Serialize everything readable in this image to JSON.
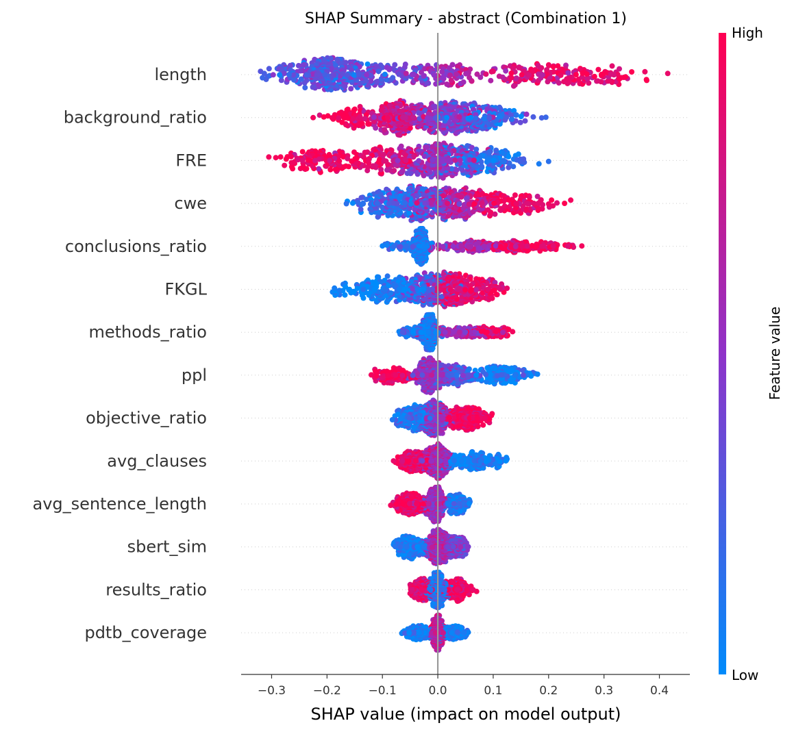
{
  "chart_data": {
    "type": "scatter",
    "subtype": "shap-beeswarm",
    "title": "SHAP Summary - abstract (Combination 1)",
    "xlabel": "SHAP value (impact on model output)",
    "xlim": [
      -0.355,
      0.455
    ],
    "xticks": [
      -0.3,
      -0.2,
      -0.1,
      0.0,
      0.1,
      0.2,
      0.3,
      0.4
    ],
    "xtick_labels": [
      "−0.3",
      "−0.2",
      "−0.1",
      "0.0",
      "0.1",
      "0.2",
      "0.3",
      "0.4"
    ],
    "zero_line": 0.0,
    "colorbar": {
      "label": "Feature value",
      "high_label": "High",
      "low_label": "Low",
      "low_color": "#008bfb",
      "mid_color": "#8f33c9",
      "high_color": "#ff0052"
    },
    "features": [
      {
        "name": "length",
        "min": -0.32,
        "max": 0.415,
        "clusters": [
          {
            "c": -0.2,
            "s": 0.05,
            "w": 0.45,
            "v": 0.3
          },
          {
            "c": -0.08,
            "s": 0.05,
            "w": 0.15,
            "v": 0.4
          },
          {
            "c": 0.02,
            "s": 0.03,
            "w": 0.1,
            "v": 0.6
          },
          {
            "c": 0.14,
            "s": 0.06,
            "w": 0.12,
            "v": 0.8
          },
          {
            "c": 0.26,
            "s": 0.05,
            "w": 0.18,
            "v": 0.9
          }
        ]
      },
      {
        "name": "background_ratio",
        "min": -0.225,
        "max": 0.195,
        "clusters": [
          {
            "c": -0.16,
            "s": 0.02,
            "w": 0.1,
            "v": 0.95
          },
          {
            "c": -0.07,
            "s": 0.03,
            "w": 0.3,
            "v": 0.8
          },
          {
            "c": 0.01,
            "s": 0.04,
            "w": 0.35,
            "v": 0.5
          },
          {
            "c": 0.08,
            "s": 0.04,
            "w": 0.25,
            "v": 0.2
          }
        ]
      },
      {
        "name": "FRE",
        "min": -0.305,
        "max": 0.2,
        "clusters": [
          {
            "c": -0.2,
            "s": 0.045,
            "w": 0.22,
            "v": 0.95
          },
          {
            "c": -0.08,
            "s": 0.03,
            "w": 0.2,
            "v": 0.8
          },
          {
            "c": 0.0,
            "s": 0.035,
            "w": 0.35,
            "v": 0.55
          },
          {
            "c": 0.08,
            "s": 0.04,
            "w": 0.23,
            "v": 0.15
          }
        ]
      },
      {
        "name": "cwe",
        "min": -0.165,
        "max": 0.24,
        "clusters": [
          {
            "c": -0.08,
            "s": 0.035,
            "w": 0.3,
            "v": 0.15
          },
          {
            "c": -0.02,
            "s": 0.03,
            "w": 0.25,
            "v": 0.4
          },
          {
            "c": 0.04,
            "s": 0.035,
            "w": 0.25,
            "v": 0.7
          },
          {
            "c": 0.13,
            "s": 0.04,
            "w": 0.2,
            "v": 0.95
          }
        ]
      },
      {
        "name": "conclusions_ratio",
        "min": -0.1,
        "max": 0.26,
        "clusters": [
          {
            "c": -0.03,
            "s": 0.006,
            "w": 0.5,
            "v": 0.05
          },
          {
            "c": -0.06,
            "s": 0.02,
            "w": 0.08,
            "v": 0.1
          },
          {
            "c": 0.06,
            "s": 0.04,
            "w": 0.22,
            "v": 0.6
          },
          {
            "c": 0.16,
            "s": 0.04,
            "w": 0.2,
            "v": 0.95
          }
        ]
      },
      {
        "name": "FKGL",
        "min": -0.19,
        "max": 0.125,
        "clusters": [
          {
            "c": -0.09,
            "s": 0.05,
            "w": 0.35,
            "v": 0.05
          },
          {
            "c": -0.02,
            "s": 0.02,
            "w": 0.2,
            "v": 0.35
          },
          {
            "c": 0.03,
            "s": 0.02,
            "w": 0.35,
            "v": 0.85
          },
          {
            "c": 0.08,
            "s": 0.02,
            "w": 0.1,
            "v": 0.9
          }
        ]
      },
      {
        "name": "methods_ratio",
        "min": -0.07,
        "max": 0.135,
        "clusters": [
          {
            "c": -0.015,
            "s": 0.006,
            "w": 0.55,
            "v": 0.05
          },
          {
            "c": -0.04,
            "s": 0.015,
            "w": 0.1,
            "v": 0.1
          },
          {
            "c": 0.04,
            "s": 0.03,
            "w": 0.2,
            "v": 0.6
          },
          {
            "c": 0.1,
            "s": 0.02,
            "w": 0.15,
            "v": 0.95
          }
        ]
      },
      {
        "name": "ppl",
        "min": -0.12,
        "max": 0.18,
        "clusters": [
          {
            "c": -0.08,
            "s": 0.02,
            "w": 0.15,
            "v": 0.95
          },
          {
            "c": -0.015,
            "s": 0.012,
            "w": 0.4,
            "v": 0.55
          },
          {
            "c": 0.03,
            "s": 0.025,
            "w": 0.25,
            "v": 0.3
          },
          {
            "c": 0.12,
            "s": 0.03,
            "w": 0.2,
            "v": 0.05
          }
        ]
      },
      {
        "name": "objective_ratio",
        "min": -0.082,
        "max": 0.098,
        "clusters": [
          {
            "c": -0.04,
            "s": 0.02,
            "w": 0.3,
            "v": 0.1
          },
          {
            "c": -0.005,
            "s": 0.012,
            "w": 0.35,
            "v": 0.5
          },
          {
            "c": 0.05,
            "s": 0.02,
            "w": 0.35,
            "v": 0.95
          }
        ]
      },
      {
        "name": "avg_clauses",
        "min": -0.08,
        "max": 0.125,
        "clusters": [
          {
            "c": -0.04,
            "s": 0.02,
            "w": 0.3,
            "v": 0.9
          },
          {
            "c": 0.0,
            "s": 0.01,
            "w": 0.45,
            "v": 0.6
          },
          {
            "c": 0.06,
            "s": 0.03,
            "w": 0.25,
            "v": 0.05
          }
        ]
      },
      {
        "name": "avg_sentence_length",
        "min": -0.085,
        "max": 0.058,
        "clusters": [
          {
            "c": -0.05,
            "s": 0.015,
            "w": 0.3,
            "v": 0.95
          },
          {
            "c": -0.005,
            "s": 0.008,
            "w": 0.5,
            "v": 0.55
          },
          {
            "c": 0.035,
            "s": 0.012,
            "w": 0.2,
            "v": 0.1
          }
        ]
      },
      {
        "name": "sbert_sim",
        "min": -0.08,
        "max": 0.055,
        "clusters": [
          {
            "c": -0.05,
            "s": 0.015,
            "w": 0.3,
            "v": 0.05
          },
          {
            "c": 0.0,
            "s": 0.01,
            "w": 0.5,
            "v": 0.6
          },
          {
            "c": 0.035,
            "s": 0.012,
            "w": 0.2,
            "v": 0.4
          }
        ]
      },
      {
        "name": "results_ratio",
        "min": -0.05,
        "max": 0.07,
        "clusters": [
          {
            "c": -0.03,
            "s": 0.01,
            "w": 0.25,
            "v": 0.9
          },
          {
            "c": 0.0,
            "s": 0.008,
            "w": 0.5,
            "v": 0.1
          },
          {
            "c": 0.035,
            "s": 0.012,
            "w": 0.25,
            "v": 0.95
          }
        ]
      },
      {
        "name": "pdtb_coverage",
        "min": -0.065,
        "max": 0.055,
        "clusters": [
          {
            "c": -0.035,
            "s": 0.012,
            "w": 0.25,
            "v": 0.05
          },
          {
            "c": 0.0,
            "s": 0.005,
            "w": 0.55,
            "v": 0.7
          },
          {
            "c": 0.03,
            "s": 0.012,
            "w": 0.2,
            "v": 0.05
          }
        ]
      }
    ]
  }
}
